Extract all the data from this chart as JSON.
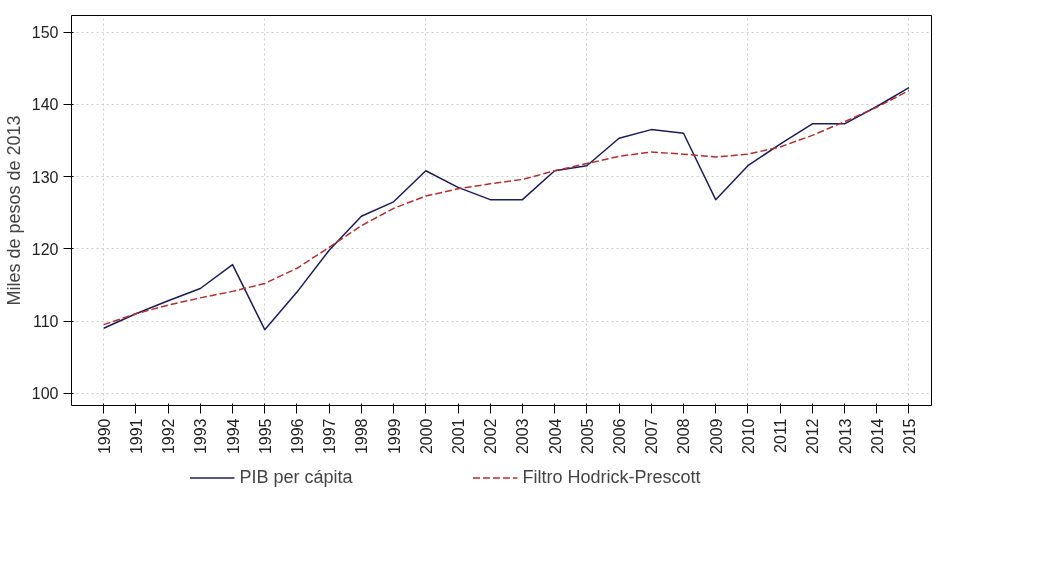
{
  "chart_data": {
    "type": "line",
    "ylabel": "Miles de pesos de 2013",
    "x": [
      1990,
      1991,
      1992,
      1993,
      1994,
      1995,
      1996,
      1997,
      1998,
      1999,
      2000,
      2001,
      2002,
      2003,
      2004,
      2005,
      2006,
      2007,
      2008,
      2009,
      2010,
      2011,
      2012,
      2013,
      2014,
      2015
    ],
    "series": [
      {
        "name": "PIB per cápita",
        "color": "#1c1c5a",
        "line_style": "solid",
        "values": [
          109.0,
          111.0,
          112.8,
          114.5,
          117.8,
          108.8,
          114.0,
          119.8,
          124.5,
          126.5,
          130.8,
          128.5,
          126.8,
          126.8,
          130.8,
          131.5,
          135.3,
          136.5,
          136.0,
          126.8,
          131.5,
          134.5,
          137.3,
          137.3,
          139.7,
          142.3
        ]
      },
      {
        "name": "Filtro Hodrick-Prescott",
        "color": "#b03030",
        "line_style": "dashed",
        "values": [
          109.5,
          111.0,
          112.2,
          113.2,
          114.1,
          115.2,
          117.3,
          120.2,
          123.2,
          125.6,
          127.3,
          128.3,
          129.0,
          129.6,
          130.8,
          131.8,
          132.8,
          133.4,
          133.1,
          132.7,
          133.1,
          134.1,
          135.7,
          137.6,
          139.6,
          141.9
        ]
      }
    ],
    "xlim": [
      1989.0,
      2015.7
    ],
    "ylim": [
      98.3,
      152.3
    ],
    "xticks": [
      1990,
      1991,
      1992,
      1993,
      1994,
      1995,
      1996,
      1997,
      1998,
      1999,
      2000,
      2001,
      2002,
      2003,
      2004,
      2005,
      2006,
      2007,
      2008,
      2009,
      2010,
      2011,
      2012,
      2013,
      2014,
      2015
    ],
    "yticks": [
      100,
      110,
      120,
      130,
      140,
      150
    ],
    "grid": true,
    "legend": "bottom"
  }
}
